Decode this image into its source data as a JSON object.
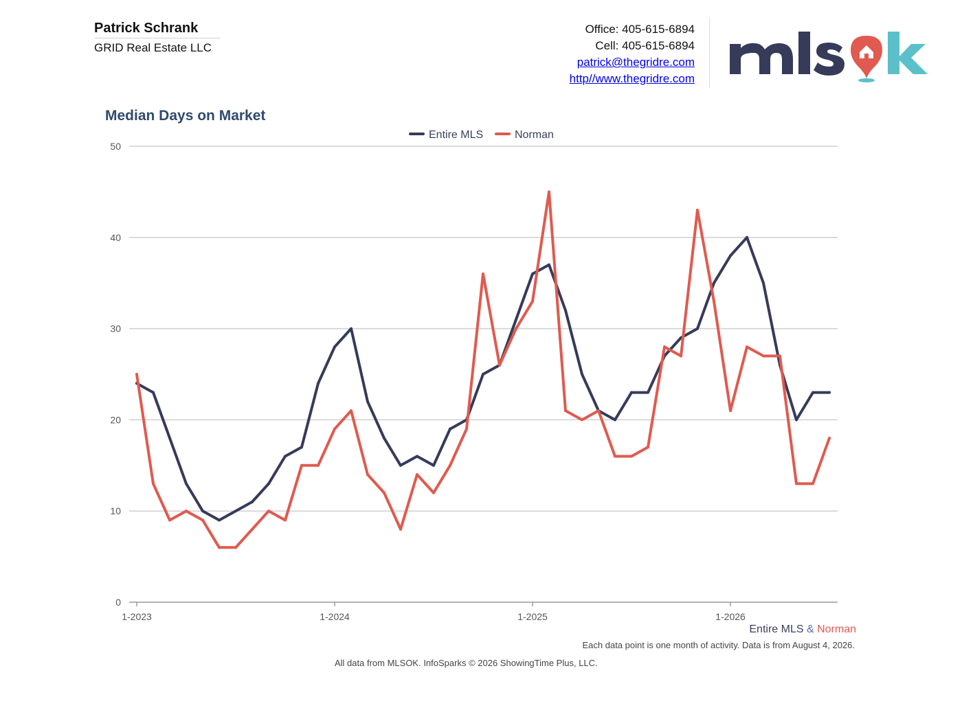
{
  "header": {
    "agent_name": "Patrick Schrank",
    "company": "GRID Real Estate LLC",
    "office": "Office: 405-615-6894",
    "cell": "Cell: 405-615-6894",
    "email": "patrick@thegridre.com",
    "website": "http//www.thegridre.com",
    "logo_text": "mlsok"
  },
  "colors": {
    "entire_mls": "#363b5a",
    "norman": "#e05a4f",
    "title": "#2f4a6d",
    "logo_dark": "#363b5a",
    "logo_teal": "#5bc0c9"
  },
  "chart_data": {
    "type": "line",
    "title": "Median Days on Market",
    "x_start": "1-2023",
    "x_tick_labels": [
      "1-2023",
      "1-2024",
      "1-2025",
      "1-2026"
    ],
    "ylim": [
      0,
      50
    ],
    "yticks": [
      0,
      10,
      20,
      30,
      40,
      50
    ],
    "grid": true,
    "legend_position": "top-center",
    "series": [
      {
        "name": "Entire MLS",
        "color": "#363b5a",
        "values": [
          24,
          23,
          18,
          13,
          10,
          9,
          10,
          11,
          13,
          16,
          17,
          24,
          28,
          30,
          22,
          18,
          15,
          16,
          15,
          19,
          20,
          25,
          26,
          31,
          36,
          37,
          32,
          25,
          21,
          20,
          23,
          23,
          27,
          29,
          30,
          35,
          38,
          40,
          35,
          26,
          20,
          23,
          23
        ]
      },
      {
        "name": "Norman",
        "color": "#e05a4f",
        "values": [
          25,
          13,
          9,
          10,
          9,
          6,
          6,
          8,
          10,
          9,
          15,
          15,
          19,
          21,
          14,
          12,
          8,
          14,
          12,
          15,
          19,
          36,
          26,
          30,
          33,
          45,
          21,
          20,
          21,
          16,
          16,
          17,
          28,
          27,
          43,
          33,
          21,
          28,
          27,
          27,
          13,
          13,
          18
        ]
      }
    ]
  },
  "footer": {
    "series_entire": "Entire MLS",
    "series_amp": "&",
    "series_norman": "Norman",
    "note": "Each data point is one month of activity. Data is from August 4, 2026.",
    "credit": "All data from MLSOK. InfoSparks © 2026 ShowingTime Plus, LLC."
  }
}
